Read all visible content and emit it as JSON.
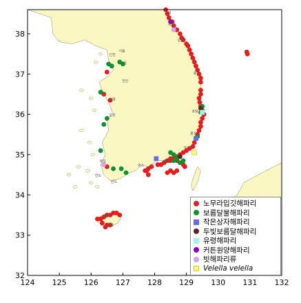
{
  "map": {
    "x_ticks": [
      "124",
      "125",
      "126",
      "127",
      "128",
      "129",
      "130",
      "131",
      "132"
    ],
    "y_ticks": [
      "32",
      "33",
      "34",
      "35",
      "36",
      "37",
      "38"
    ],
    "land_color": "#fbf7c2",
    "sea_color": "#ffffff"
  },
  "legend": {
    "items": [
      {
        "shape": "circle",
        "color": "#e02020",
        "label": "노무라입깃해파리",
        "italic": false
      },
      {
        "shape": "circle",
        "color": "#109030",
        "label": "보름달물해파리",
        "italic": false
      },
      {
        "shape": "square",
        "color": "#6a6ae8",
        "label": "작은상자해파리",
        "italic": false
      },
      {
        "shape": "circle",
        "color": "#5a2a20",
        "label": "두빛보름달해파리",
        "italic": false
      },
      {
        "shape": "square",
        "color": "#a8f0f0",
        "label": "유령해파리",
        "italic": false
      },
      {
        "shape": "circle",
        "color": "#8a00b0",
        "label": "커튼원양해파리",
        "italic": false
      },
      {
        "shape": "circle",
        "color": "#d8a0f0",
        "label": "빗해파리류",
        "italic": false
      },
      {
        "shape": "square",
        "color": "#ffff70",
        "label": "Velella velella",
        "italic": true
      }
    ]
  },
  "places": {
    "north1": "고성",
    "north2": "속초",
    "north3": "강릉",
    "seoul": "서울",
    "incheon": "인천",
    "suwon": "수원",
    "cheonan": "천안",
    "boryeong": "보령",
    "gunsan": "군산",
    "mokpo": "목포",
    "jindo": "진도",
    "wando": "완도",
    "yeosu": "여수",
    "tongyeong": "통영",
    "busan": "부산",
    "ulsan": "울산",
    "pohang": "포항",
    "uljin": "울진",
    "jeju": "제주",
    "seogwipo": "서귀포"
  },
  "observations": {
    "nomura": [
      [
        128.35,
        38.6
      ],
      [
        128.4,
        38.5
      ],
      [
        128.45,
        38.4
      ],
      [
        128.55,
        38.3
      ],
      [
        128.6,
        38.2
      ],
      [
        128.7,
        38.1
      ],
      [
        128.8,
        38.0
      ],
      [
        128.85,
        37.9
      ],
      [
        128.9,
        37.85
      ],
      [
        129.0,
        37.75
      ],
      [
        129.05,
        37.7
      ],
      [
        129.1,
        37.6
      ],
      [
        129.15,
        37.5
      ],
      [
        129.2,
        37.4
      ],
      [
        129.25,
        37.3
      ],
      [
        129.3,
        37.2
      ],
      [
        129.35,
        37.1
      ],
      [
        129.4,
        37.0
      ],
      [
        129.45,
        36.9
      ],
      [
        129.45,
        36.8
      ],
      [
        129.45,
        36.6
      ],
      [
        129.45,
        36.5
      ],
      [
        129.4,
        36.4
      ],
      [
        129.42,
        36.3
      ],
      [
        129.45,
        36.2
      ],
      [
        129.5,
        36.1
      ],
      [
        129.55,
        36.0
      ],
      [
        129.5,
        35.9
      ],
      [
        129.45,
        35.8
      ],
      [
        129.45,
        35.7
      ],
      [
        129.4,
        35.6
      ],
      [
        129.35,
        35.5
      ],
      [
        129.3,
        35.4
      ],
      [
        129.25,
        35.3
      ],
      [
        129.2,
        35.2
      ],
      [
        129.1,
        35.15
      ],
      [
        129.0,
        35.1
      ],
      [
        128.9,
        35.05
      ],
      [
        128.8,
        35.0
      ],
      [
        128.7,
        34.95
      ],
      [
        128.6,
        34.9
      ],
      [
        128.5,
        34.85
      ],
      [
        128.4,
        34.85
      ],
      [
        128.3,
        34.8
      ],
      [
        128.2,
        34.75
      ],
      [
        128.1,
        34.75
      ],
      [
        127.9,
        34.7
      ],
      [
        127.8,
        34.65
      ],
      [
        127.75,
        34.6
      ],
      [
        127.7,
        34.6
      ],
      [
        128.7,
        34.6
      ],
      [
        128.6,
        34.55
      ],
      [
        128.5,
        34.6
      ],
      [
        128.4,
        34.55
      ],
      [
        127.8,
        34.5
      ],
      [
        126.5,
        37.05
      ],
      [
        126.6,
        36.35
      ],
      [
        126.4,
        36.5
      ],
      [
        126.5,
        34.7
      ],
      [
        126.4,
        33.45
      ],
      [
        126.5,
        33.5
      ],
      [
        126.6,
        33.5
      ],
      [
        126.7,
        33.55
      ],
      [
        126.8,
        33.55
      ],
      [
        126.9,
        33.5
      ],
      [
        126.3,
        33.4
      ],
      [
        126.2,
        33.4
      ],
      [
        126.35,
        33.3
      ],
      [
        126.5,
        33.25
      ],
      [
        126.6,
        33.25
      ],
      [
        126.45,
        33.2
      ],
      [
        130.9,
        37.55
      ],
      [
        130.92,
        37.5
      ],
      [
        128.9,
        34.75
      ],
      [
        128.95,
        34.7
      ],
      [
        128.5,
        34.9
      ],
      [
        128.7,
        34.85
      ]
    ],
    "moon": [
      [
        126.65,
        37.2
      ],
      [
        126.55,
        37.25
      ],
      [
        126.9,
        37.3
      ],
      [
        127.0,
        37.25
      ],
      [
        126.3,
        36.55
      ],
      [
        126.5,
        35.9
      ],
      [
        126.4,
        35.75
      ],
      [
        126.3,
        35.1
      ],
      [
        126.7,
        34.65
      ],
      [
        126.95,
        34.65
      ],
      [
        127.1,
        34.55
      ],
      [
        128.6,
        35.0
      ],
      [
        128.5,
        35.05
      ],
      [
        128.7,
        34.9
      ],
      [
        128.75,
        34.95
      ],
      [
        128.6,
        34.85
      ],
      [
        129.5,
        36.1
      ],
      [
        129.5,
        36.2
      ],
      [
        129.45,
        36.05
      ],
      [
        129.35,
        35.45
      ],
      [
        128.9,
        34.85
      ],
      [
        128.8,
        34.8
      ]
    ],
    "box": [
      [
        128.05,
        34.9
      ],
      [
        129.3,
        35.4
      ]
    ],
    "brown": [
      [
        129.45,
        36.15
      ],
      [
        128.8,
        34.95
      ]
    ],
    "ghost": [
      [
        129.5,
        36.05
      ]
    ],
    "curtain": [
      [
        128.5,
        38.3
      ]
    ],
    "ctenophore": [
      [
        128.6,
        38.1
      ],
      [
        126.4,
        34.75
      ]
    ],
    "velella": [
      [
        129.25,
        35.05
      ]
    ]
  }
}
